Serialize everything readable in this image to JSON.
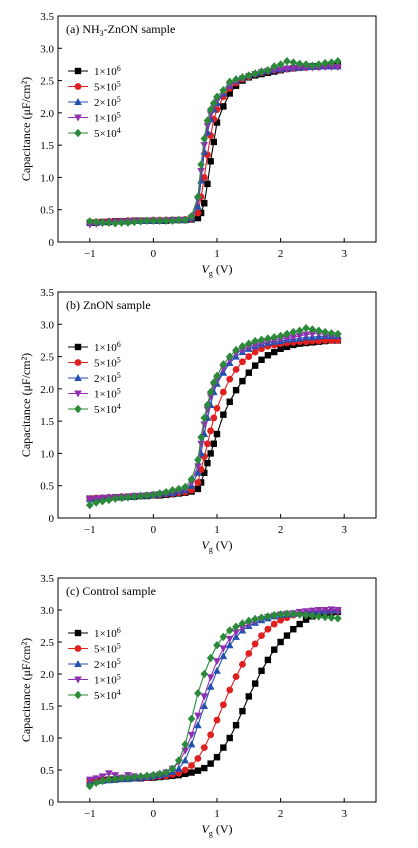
{
  "figure": {
    "colors": [
      "#000000",
      "#e02020",
      "#2050b0",
      "#9030b0",
      "#2a8a3a"
    ],
    "markers": [
      "square",
      "circle",
      "triangle-up",
      "triangle-down",
      "diamond"
    ]
  },
  "chart_data": [
    {
      "type": "line",
      "title": "(a) NH3-ZnON sample",
      "title_parts": [
        "(a) NH",
        "3",
        "-ZnON sample"
      ],
      "xlabel": "V_g (V)",
      "ylabel": "Capacitance (μF/cm²)",
      "xlim": [
        -1.5,
        3.5
      ],
      "ylim": [
        0,
        3.5
      ],
      "xticks": [
        -1,
        0,
        1,
        2,
        3
      ],
      "yticks": [
        0,
        0.5,
        1.0,
        1.5,
        2.0,
        2.5,
        3.0,
        3.5
      ],
      "legend_position": "upper-left",
      "x": [
        -1.0,
        -0.9,
        -0.8,
        -0.7,
        -0.6,
        -0.5,
        -0.4,
        -0.3,
        -0.2,
        -0.1,
        0.0,
        0.1,
        0.2,
        0.3,
        0.4,
        0.5,
        0.6,
        0.7,
        0.75,
        0.8,
        0.85,
        0.9,
        0.95,
        1.0,
        1.1,
        1.2,
        1.3,
        1.4,
        1.5,
        1.6,
        1.7,
        1.8,
        1.9,
        2.0,
        2.1,
        2.2,
        2.3,
        2.4,
        2.5,
        2.6,
        2.7,
        2.8,
        2.9
      ],
      "series": [
        {
          "name": "1×10⁶",
          "values": [
            0.3,
            0.3,
            0.31,
            0.31,
            0.32,
            0.32,
            0.32,
            0.33,
            0.33,
            0.33,
            0.33,
            0.33,
            0.33,
            0.34,
            0.34,
            0.34,
            0.35,
            0.37,
            0.45,
            0.6,
            0.9,
            1.25,
            1.55,
            1.85,
            2.1,
            2.3,
            2.42,
            2.5,
            2.55,
            2.58,
            2.6,
            2.62,
            2.64,
            2.66,
            2.68,
            2.69,
            2.7,
            2.71,
            2.72,
            2.72,
            2.73,
            2.73,
            2.74
          ]
        },
        {
          "name": "5×10⁵",
          "values": [
            0.31,
            0.31,
            0.31,
            0.32,
            0.32,
            0.32,
            0.33,
            0.33,
            0.33,
            0.33,
            0.34,
            0.34,
            0.34,
            0.34,
            0.34,
            0.35,
            0.36,
            0.45,
            0.7,
            1.0,
            1.35,
            1.65,
            1.9,
            2.05,
            2.25,
            2.38,
            2.46,
            2.52,
            2.56,
            2.6,
            2.62,
            2.64,
            2.66,
            2.67,
            2.68,
            2.69,
            2.7,
            2.7,
            2.71,
            2.71,
            2.72,
            2.72,
            2.72
          ]
        },
        {
          "name": "2×10⁵",
          "values": [
            0.31,
            0.31,
            0.31,
            0.32,
            0.32,
            0.32,
            0.33,
            0.33,
            0.33,
            0.33,
            0.33,
            0.33,
            0.34,
            0.34,
            0.34,
            0.34,
            0.37,
            0.55,
            0.95,
            1.4,
            1.7,
            1.9,
            2.05,
            2.15,
            2.3,
            2.42,
            2.5,
            2.55,
            2.58,
            2.61,
            2.63,
            2.65,
            2.67,
            2.68,
            2.69,
            2.7,
            2.7,
            2.71,
            2.71,
            2.72,
            2.72,
            2.72,
            2.72
          ]
        },
        {
          "name": "1×10⁵",
          "values": [
            0.27,
            0.28,
            0.29,
            0.3,
            0.3,
            0.31,
            0.31,
            0.32,
            0.32,
            0.33,
            0.33,
            0.33,
            0.33,
            0.34,
            0.34,
            0.34,
            0.38,
            0.65,
            1.1,
            1.5,
            1.8,
            1.98,
            2.1,
            2.2,
            2.32,
            2.42,
            2.48,
            2.53,
            2.57,
            2.6,
            2.63,
            2.65,
            2.66,
            2.67,
            2.68,
            2.69,
            2.7,
            2.7,
            2.7,
            2.71,
            2.71,
            2.71,
            2.71
          ]
        },
        {
          "name": "5×10⁴",
          "values": [
            0.32,
            0.31,
            0.3,
            0.3,
            0.29,
            0.3,
            0.3,
            0.31,
            0.32,
            0.33,
            0.33,
            0.33,
            0.33,
            0.33,
            0.34,
            0.34,
            0.4,
            0.7,
            1.2,
            1.6,
            1.88,
            2.05,
            2.15,
            2.25,
            2.35,
            2.48,
            2.52,
            2.55,
            2.58,
            2.61,
            2.64,
            2.66,
            2.72,
            2.75,
            2.8,
            2.78,
            2.76,
            2.75,
            2.73,
            2.75,
            2.77,
            2.78,
            2.8
          ]
        }
      ]
    },
    {
      "type": "line",
      "title": "(b) ZnON sample",
      "title_parts": [
        "(b) ZnON sample",
        "",
        ""
      ],
      "xlabel": "V_g (V)",
      "ylabel": "Capacitance (μF/cm²)",
      "xlim": [
        -1.5,
        3.5
      ],
      "ylim": [
        0,
        3.5
      ],
      "xticks": [
        -1,
        0,
        1,
        2,
        3
      ],
      "yticks": [
        0,
        0.5,
        1.0,
        1.5,
        2.0,
        2.5,
        3.0,
        3.5
      ],
      "legend_position": "upper-left",
      "x": [
        -1.0,
        -0.9,
        -0.8,
        -0.7,
        -0.6,
        -0.5,
        -0.4,
        -0.3,
        -0.2,
        -0.1,
        0.0,
        0.1,
        0.2,
        0.3,
        0.4,
        0.5,
        0.6,
        0.7,
        0.75,
        0.8,
        0.85,
        0.9,
        0.95,
        1.0,
        1.1,
        1.2,
        1.3,
        1.4,
        1.5,
        1.6,
        1.7,
        1.8,
        1.9,
        2.0,
        2.1,
        2.2,
        2.3,
        2.4,
        2.5,
        2.6,
        2.7,
        2.8,
        2.9
      ],
      "series": [
        {
          "name": "1×10⁶",
          "values": [
            0.3,
            0.3,
            0.31,
            0.31,
            0.32,
            0.32,
            0.33,
            0.33,
            0.34,
            0.34,
            0.35,
            0.35,
            0.36,
            0.37,
            0.38,
            0.39,
            0.41,
            0.45,
            0.55,
            0.7,
            0.85,
            1.0,
            1.15,
            1.3,
            1.6,
            1.8,
            1.98,
            2.12,
            2.25,
            2.36,
            2.45,
            2.52,
            2.57,
            2.62,
            2.65,
            2.68,
            2.7,
            2.71,
            2.72,
            2.73,
            2.74,
            2.75,
            2.75
          ]
        },
        {
          "name": "5×10⁵",
          "values": [
            0.3,
            0.31,
            0.31,
            0.32,
            0.32,
            0.33,
            0.33,
            0.34,
            0.34,
            0.35,
            0.35,
            0.36,
            0.37,
            0.38,
            0.39,
            0.4,
            0.43,
            0.55,
            0.75,
            0.95,
            1.15,
            1.35,
            1.55,
            1.7,
            1.95,
            2.15,
            2.3,
            2.42,
            2.5,
            2.57,
            2.62,
            2.66,
            2.68,
            2.7,
            2.71,
            2.72,
            2.73,
            2.73,
            2.74,
            2.74,
            2.75,
            2.75,
            2.75
          ]
        },
        {
          "name": "2×10⁵",
          "values": [
            0.29,
            0.3,
            0.31,
            0.32,
            0.32,
            0.33,
            0.33,
            0.34,
            0.35,
            0.35,
            0.36,
            0.37,
            0.38,
            0.39,
            0.41,
            0.43,
            0.5,
            0.7,
            1.0,
            1.3,
            1.55,
            1.75,
            1.95,
            2.08,
            2.25,
            2.4,
            2.5,
            2.57,
            2.62,
            2.66,
            2.69,
            2.71,
            2.73,
            2.74,
            2.76,
            2.77,
            2.78,
            2.8,
            2.8,
            2.81,
            2.82,
            2.82,
            2.82
          ]
        },
        {
          "name": "1×10⁵",
          "values": [
            0.29,
            0.3,
            0.31,
            0.31,
            0.32,
            0.32,
            0.33,
            0.34,
            0.34,
            0.35,
            0.36,
            0.37,
            0.38,
            0.4,
            0.42,
            0.45,
            0.55,
            0.8,
            1.15,
            1.45,
            1.68,
            1.88,
            2.05,
            2.15,
            2.32,
            2.45,
            2.55,
            2.6,
            2.65,
            2.68,
            2.71,
            2.73,
            2.75,
            2.77,
            2.78,
            2.8,
            2.82,
            2.84,
            2.85,
            2.86,
            2.84,
            2.83,
            2.82
          ]
        },
        {
          "name": "5×10⁴",
          "values": [
            0.2,
            0.24,
            0.26,
            0.28,
            0.3,
            0.31,
            0.32,
            0.33,
            0.34,
            0.35,
            0.36,
            0.38,
            0.4,
            0.43,
            0.45,
            0.48,
            0.6,
            0.9,
            1.25,
            1.55,
            1.75,
            1.95,
            2.1,
            2.2,
            2.38,
            2.5,
            2.6,
            2.66,
            2.7,
            2.74,
            2.76,
            2.78,
            2.8,
            2.82,
            2.85,
            2.88,
            2.9,
            2.94,
            2.92,
            2.9,
            2.88,
            2.86,
            2.85
          ]
        }
      ]
    },
    {
      "type": "line",
      "title": "(c) Control sample",
      "title_parts": [
        "(c) Control sample",
        "",
        ""
      ],
      "xlabel": "V_g (V)",
      "ylabel": "Capacitance (μF/cm²)",
      "xlim": [
        -1.5,
        3.5
      ],
      "ylim": [
        0,
        3.5
      ],
      "xticks": [
        -1,
        0,
        1,
        2,
        3
      ],
      "yticks": [
        0,
        0.5,
        1.0,
        1.5,
        2.0,
        2.5,
        3.0,
        3.5
      ],
      "legend_position": "upper-left",
      "x": [
        -1.0,
        -0.9,
        -0.8,
        -0.7,
        -0.6,
        -0.5,
        -0.4,
        -0.3,
        -0.2,
        -0.1,
        0.0,
        0.1,
        0.2,
        0.3,
        0.4,
        0.5,
        0.6,
        0.7,
        0.8,
        0.9,
        1.0,
        1.1,
        1.2,
        1.3,
        1.4,
        1.5,
        1.6,
        1.7,
        1.8,
        1.9,
        2.0,
        2.1,
        2.2,
        2.3,
        2.4,
        2.5,
        2.6,
        2.7,
        2.8,
        2.9
      ],
      "series": [
        {
          "name": "1×10⁶",
          "values": [
            0.32,
            0.33,
            0.34,
            0.35,
            0.35,
            0.36,
            0.36,
            0.37,
            0.37,
            0.38,
            0.38,
            0.39,
            0.4,
            0.41,
            0.42,
            0.44,
            0.46,
            0.49,
            0.53,
            0.6,
            0.7,
            0.85,
            1.0,
            1.2,
            1.42,
            1.65,
            1.85,
            2.05,
            2.22,
            2.38,
            2.5,
            2.6,
            2.7,
            2.78,
            2.85,
            2.9,
            2.93,
            2.95,
            2.96,
            2.97
          ]
        },
        {
          "name": "5×10⁵",
          "values": [
            0.32,
            0.33,
            0.34,
            0.35,
            0.35,
            0.36,
            0.37,
            0.37,
            0.38,
            0.38,
            0.39,
            0.4,
            0.41,
            0.43,
            0.45,
            0.5,
            0.57,
            0.68,
            0.85,
            1.05,
            1.28,
            1.52,
            1.75,
            1.96,
            2.15,
            2.32,
            2.47,
            2.6,
            2.7,
            2.78,
            2.84,
            2.88,
            2.92,
            2.94,
            2.95,
            2.96,
            2.97,
            2.97,
            2.98,
            2.98
          ]
        },
        {
          "name": "2×10⁵",
          "values": [
            0.3,
            0.32,
            0.33,
            0.34,
            0.35,
            0.36,
            0.36,
            0.37,
            0.38,
            0.39,
            0.4,
            0.42,
            0.44,
            0.47,
            0.52,
            0.65,
            0.9,
            1.2,
            1.5,
            1.8,
            2.05,
            2.28,
            2.45,
            2.58,
            2.68,
            2.75,
            2.8,
            2.84,
            2.87,
            2.9,
            2.92,
            2.93,
            2.94,
            2.95,
            2.96,
            2.97,
            2.98,
            2.98,
            2.99,
            2.99
          ]
        },
        {
          "name": "1×10⁵",
          "values": [
            0.35,
            0.37,
            0.4,
            0.45,
            0.42,
            0.38,
            0.42,
            0.4,
            0.37,
            0.39,
            0.41,
            0.43,
            0.46,
            0.52,
            0.62,
            0.8,
            1.05,
            1.35,
            1.65,
            1.95,
            2.2,
            2.4,
            2.55,
            2.65,
            2.72,
            2.78,
            2.83,
            2.86,
            2.89,
            2.91,
            2.93,
            2.94,
            2.95,
            2.97,
            2.98,
            2.99,
            3.0,
            3.0,
            3.01,
            3.0
          ]
        },
        {
          "name": "5×10⁴",
          "values": [
            0.25,
            0.3,
            0.33,
            0.35,
            0.36,
            0.37,
            0.38,
            0.39,
            0.4,
            0.41,
            0.42,
            0.44,
            0.46,
            0.52,
            0.65,
            0.9,
            1.3,
            1.7,
            2.0,
            2.25,
            2.45,
            2.58,
            2.68,
            2.74,
            2.79,
            2.83,
            2.86,
            2.88,
            2.9,
            2.92,
            2.93,
            2.94,
            2.94,
            2.93,
            2.92,
            2.91,
            2.9,
            2.89,
            2.88,
            2.87
          ]
        }
      ]
    }
  ]
}
